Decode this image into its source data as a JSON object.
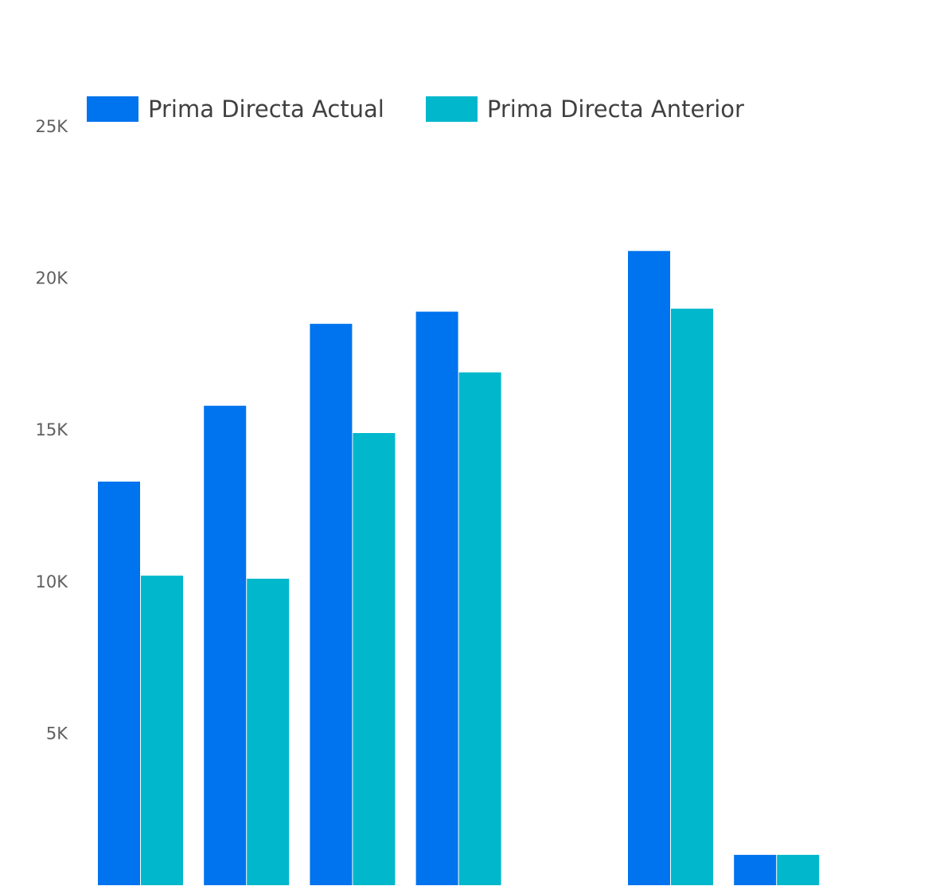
{
  "chart_data": {
    "type": "bar",
    "title": "",
    "xlabel": "",
    "ylabel": "",
    "ylim": [
      0,
      25000
    ],
    "y_ticks": [
      {
        "value": 5000,
        "label": "5K"
      },
      {
        "value": 10000,
        "label": "10K"
      },
      {
        "value": 15000,
        "label": "15K"
      },
      {
        "value": 20000,
        "label": "20K"
      },
      {
        "value": 25000,
        "label": "25K"
      }
    ],
    "categories": [
      "",
      "",
      "",
      "",
      "",
      "",
      "",
      ""
    ],
    "series": [
      {
        "name": "Prima Directa Actual",
        "color": "#0073EE",
        "values": [
          13300,
          15800,
          18500,
          18900,
          0,
          20900,
          1000,
          0
        ]
      },
      {
        "name": "Prima Directa Anterior",
        "color": "#00B7CC",
        "values": [
          10200,
          10100,
          14900,
          16900,
          0,
          19000,
          1000,
          0
        ]
      }
    ],
    "legend_position": "top",
    "grid": false
  }
}
